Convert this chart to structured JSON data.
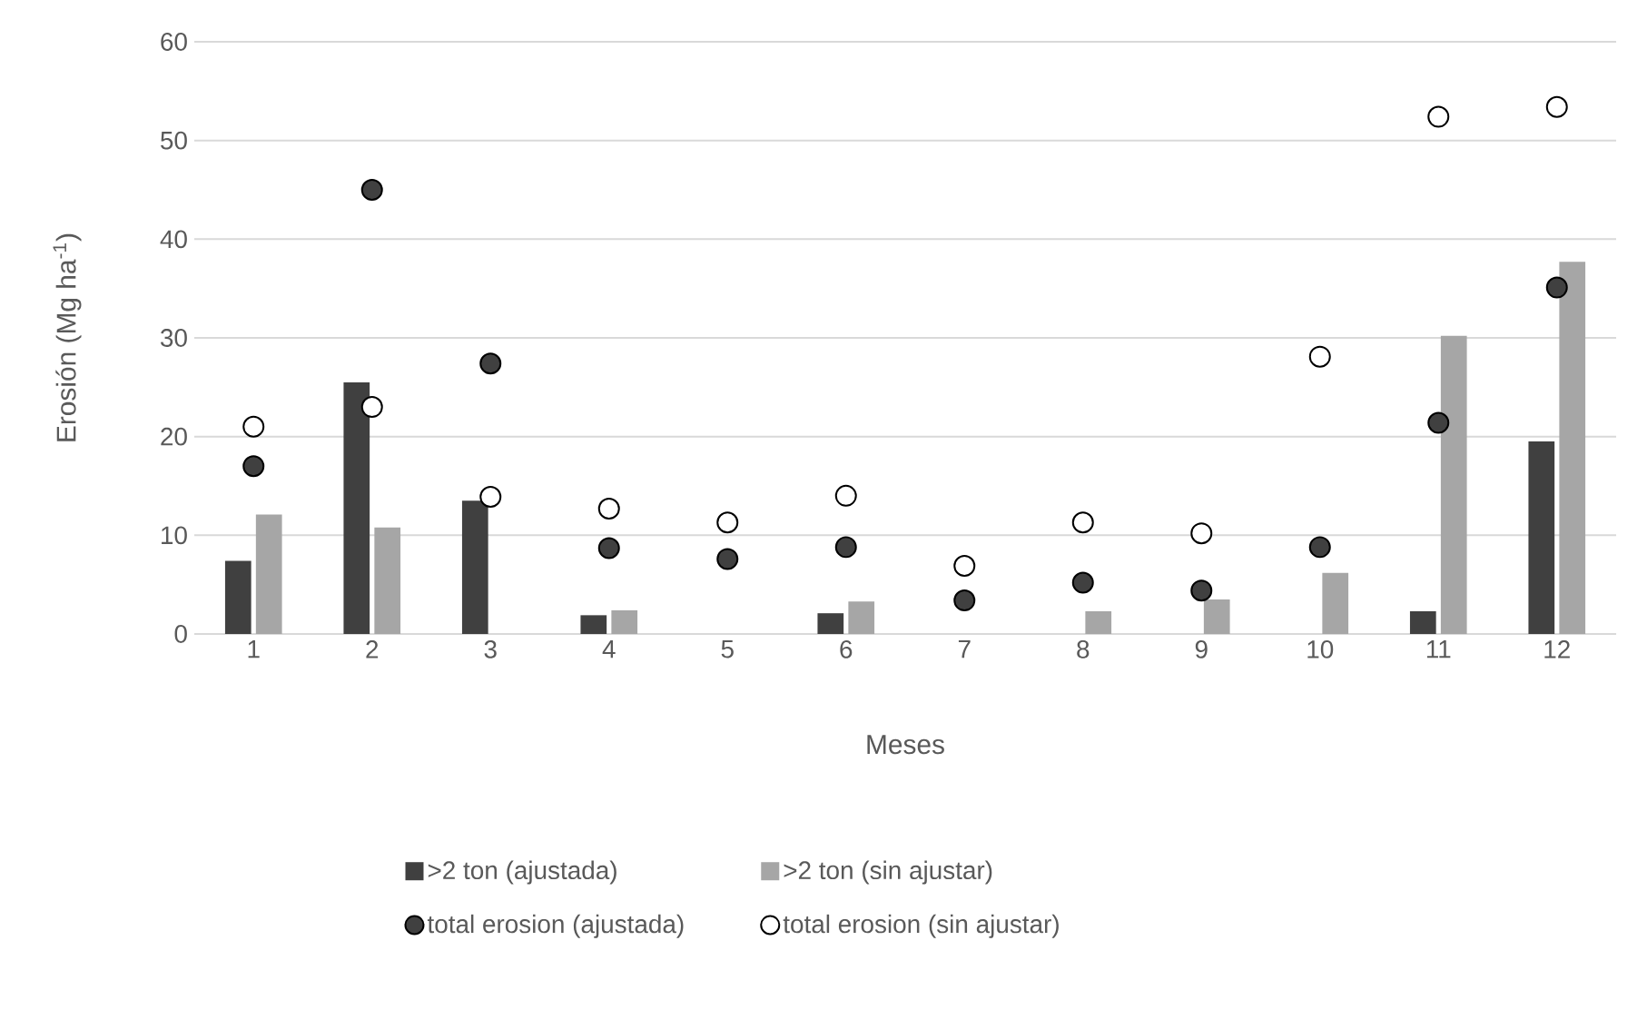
{
  "chart_data": {
    "type": "bar",
    "xlabel": "Meses",
    "ylabel": "Erosión (Mg ha$^{-1}$)",
    "categories": [
      "1",
      "2",
      "3",
      "4",
      "5",
      "6",
      "7",
      "8",
      "9",
      "10",
      "11",
      "12"
    ],
    "series": [
      {
        "name": ">2 ton (ajustada)",
        "color": "#404040",
        "values": [
          7.4,
          25.5,
          13.5,
          1.9,
          null,
          2.1,
          null,
          null,
          null,
          null,
          2.3,
          19.5
        ]
      },
      {
        "name": ">2 ton (sin ajustar)",
        "color": "#a6a6a6",
        "values": [
          12.1,
          10.8,
          null,
          2.4,
          null,
          3.3,
          null,
          2.3,
          3.5,
          6.2,
          30.2,
          37.7
        ]
      },
      {
        "type": "scatter",
        "name": "total erosion (ajustada)",
        "color": "#404040",
        "marker": "circle",
        "x": [
          "1",
          "2",
          "3",
          "4",
          "5",
          "6",
          "7",
          "8",
          "9",
          "10",
          "11",
          "12"
        ],
        "values": [
          17,
          45,
          27.4,
          8.7,
          7.6,
          8.8,
          3.4,
          5.2,
          4.4,
          8.8,
          21.4,
          35.1
        ]
      },
      {
        "type": "scatter",
        "name": "total erosion (sin ajustar)",
        "color": "#ffffff",
        "marker": "circle",
        "x": [
          "1",
          "2",
          "3",
          "4",
          "5",
          "6",
          "7",
          "8",
          "9",
          "10",
          "11",
          "12"
        ],
        "values": [
          21,
          23,
          13.9,
          12.7,
          11.3,
          14,
          6.9,
          11.3,
          10.2,
          28.1,
          52.4,
          53.4
        ]
      }
    ],
    "ylim": [
      0,
      60
    ],
    "yticks": [
      0,
      10,
      20,
      30,
      40,
      50,
      60
    ],
    "grid": "y",
    "legend": "bottom"
  }
}
